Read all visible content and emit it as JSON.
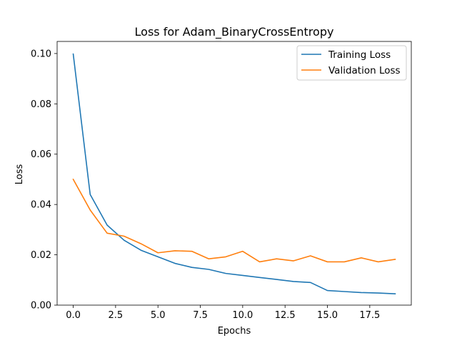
{
  "chart_data": {
    "type": "line",
    "title": "Loss for Adam_BinaryCrossEntropy",
    "xlabel": "Epochs",
    "ylabel": "Loss",
    "xlim": [
      -0.95,
      19.95
    ],
    "ylim": [
      0.0,
      0.1048
    ],
    "x_ticks": [
      0.0,
      2.5,
      5.0,
      7.5,
      10.0,
      12.5,
      15.0,
      17.5
    ],
    "x_tick_labels": [
      "0.0",
      "2.5",
      "5.0",
      "7.5",
      "10.0",
      "12.5",
      "15.0",
      "17.5"
    ],
    "y_ticks": [
      0.0,
      0.02,
      0.04,
      0.06,
      0.08,
      0.1
    ],
    "y_tick_labels": [
      "0.00",
      "0.02",
      "0.04",
      "0.06",
      "0.08",
      "0.10"
    ],
    "grid": false,
    "legend_position": "top-right",
    "x": [
      0,
      1,
      2,
      3,
      4,
      5,
      6,
      7,
      8,
      9,
      10,
      11,
      12,
      13,
      14,
      15,
      16,
      17,
      18,
      19
    ],
    "series": [
      {
        "name": "Training Loss",
        "color": "#1f77b4",
        "values": [
          0.0998,
          0.044,
          0.0318,
          0.0258,
          0.0218,
          0.0192,
          0.0166,
          0.015,
          0.0142,
          0.0126,
          0.0118,
          0.011,
          0.0102,
          0.0094,
          0.009,
          0.0058,
          0.0054,
          0.005,
          0.0048,
          0.0045
        ]
      },
      {
        "name": "Validation Loss",
        "color": "#ff7f0e",
        "values": [
          0.05,
          0.0378,
          0.0286,
          0.0274,
          0.0244,
          0.0208,
          0.0216,
          0.0214,
          0.0184,
          0.0192,
          0.0214,
          0.0172,
          0.0184,
          0.0176,
          0.0196,
          0.0172,
          0.0172,
          0.0188,
          0.0172,
          0.0182
        ]
      }
    ]
  }
}
